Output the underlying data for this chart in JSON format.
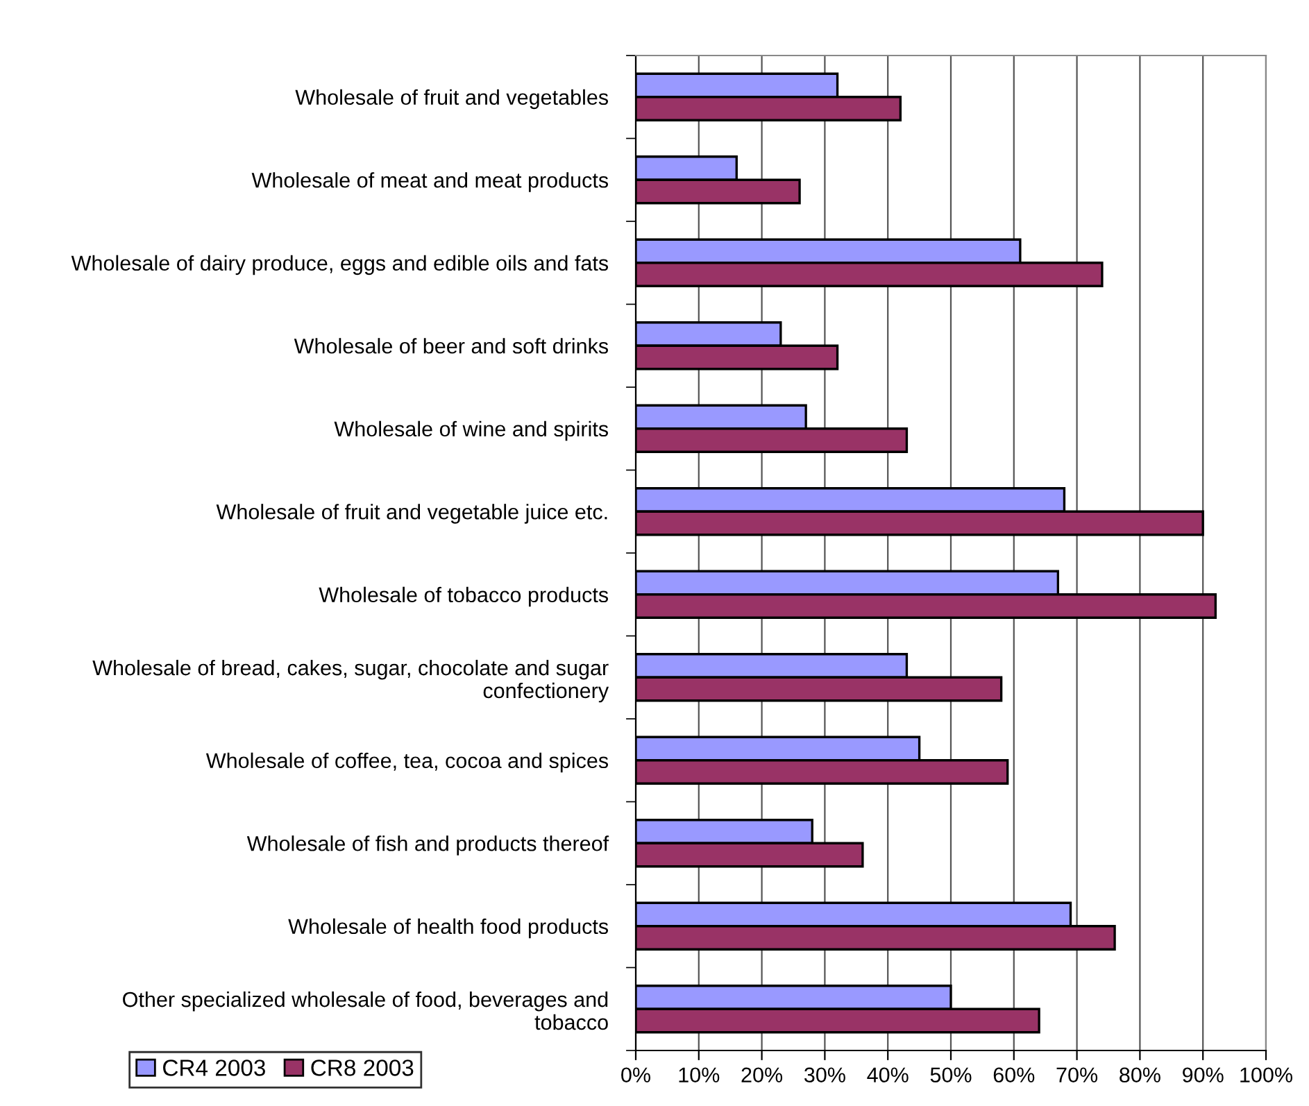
{
  "chart_data": {
    "type": "bar",
    "orientation": "horizontal",
    "categories": [
      "Wholesale of fruit and vegetables",
      "Wholesale of meat and meat products",
      "Wholesale of dairy produce, eggs and edible oils and fats",
      "Wholesale of beer and soft drinks",
      "Wholesale of wine and spirits",
      "Wholesale of fruit and vegetable juice etc.",
      "Wholesale of tobacco products",
      "Wholesale of bread, cakes, sugar, chocolate and sugar\nconfectionery",
      "Wholesale of coffee, tea, cocoa and spices",
      "Wholesale of fish and products thereof",
      "Wholesale of health food products",
      "Other specialized wholesale of food, beverages and\ntobacco"
    ],
    "series": [
      {
        "name": "CR4 2003",
        "color": "#9999ff",
        "values": [
          32,
          16,
          61,
          23,
          27,
          68,
          67,
          43,
          45,
          28,
          69,
          50
        ]
      },
      {
        "name": "CR8 2003",
        "color": "#993366",
        "values": [
          42,
          26,
          74,
          32,
          43,
          90,
          92,
          58,
          59,
          36,
          76,
          64
        ]
      }
    ],
    "xlim": [
      0,
      100
    ],
    "xticks": [
      {
        "value": 0,
        "label": "0%"
      },
      {
        "value": 10,
        "label": "10%"
      },
      {
        "value": 20,
        "label": "20%"
      },
      {
        "value": 30,
        "label": "30%"
      },
      {
        "value": 40,
        "label": "40%"
      },
      {
        "value": 50,
        "label": "50%"
      },
      {
        "value": 60,
        "label": "60%"
      },
      {
        "value": 70,
        "label": "70%"
      },
      {
        "value": 80,
        "label": "80%"
      },
      {
        "value": 90,
        "label": "90%"
      },
      {
        "value": 100,
        "label": "100%"
      }
    ],
    "grid": "x",
    "legend": "bottom left"
  }
}
